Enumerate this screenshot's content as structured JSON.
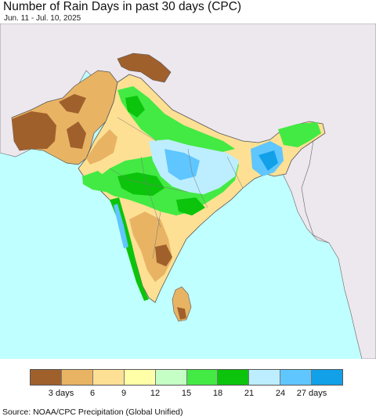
{
  "title": "Number of Rain Days in past 30 days (CPC)",
  "date_range": "Jun. 11 - Jul. 10, 2025",
  "source": "Source: NOAA/CPC Precipitation (Global Unified)",
  "legend": {
    "colors": [
      "#a0602c",
      "#e8b464",
      "#fde093",
      "#ffffa8",
      "#c6ffc6",
      "#43ea43",
      "#0cc40c",
      "#bdeeff",
      "#5fc6ff",
      "#12a0e8"
    ],
    "tick_labels": [
      {
        "text": "3 days",
        "after_bin": 1
      },
      {
        "text": "6",
        "after_bin": 2
      },
      {
        "text": "9",
        "after_bin": 3
      },
      {
        "text": "12",
        "after_bin": 4
      },
      {
        "text": "15",
        "after_bin": 5
      },
      {
        "text": "18",
        "after_bin": 6
      },
      {
        "text": "21",
        "after_bin": 7
      },
      {
        "text": "24",
        "after_bin": 8
      },
      {
        "text": "27 days",
        "after_bin": 9
      }
    ]
  },
  "colors": {
    "ocean": "#c0ffff",
    "outside_land": "#ede7ee",
    "border": "#555555"
  }
}
